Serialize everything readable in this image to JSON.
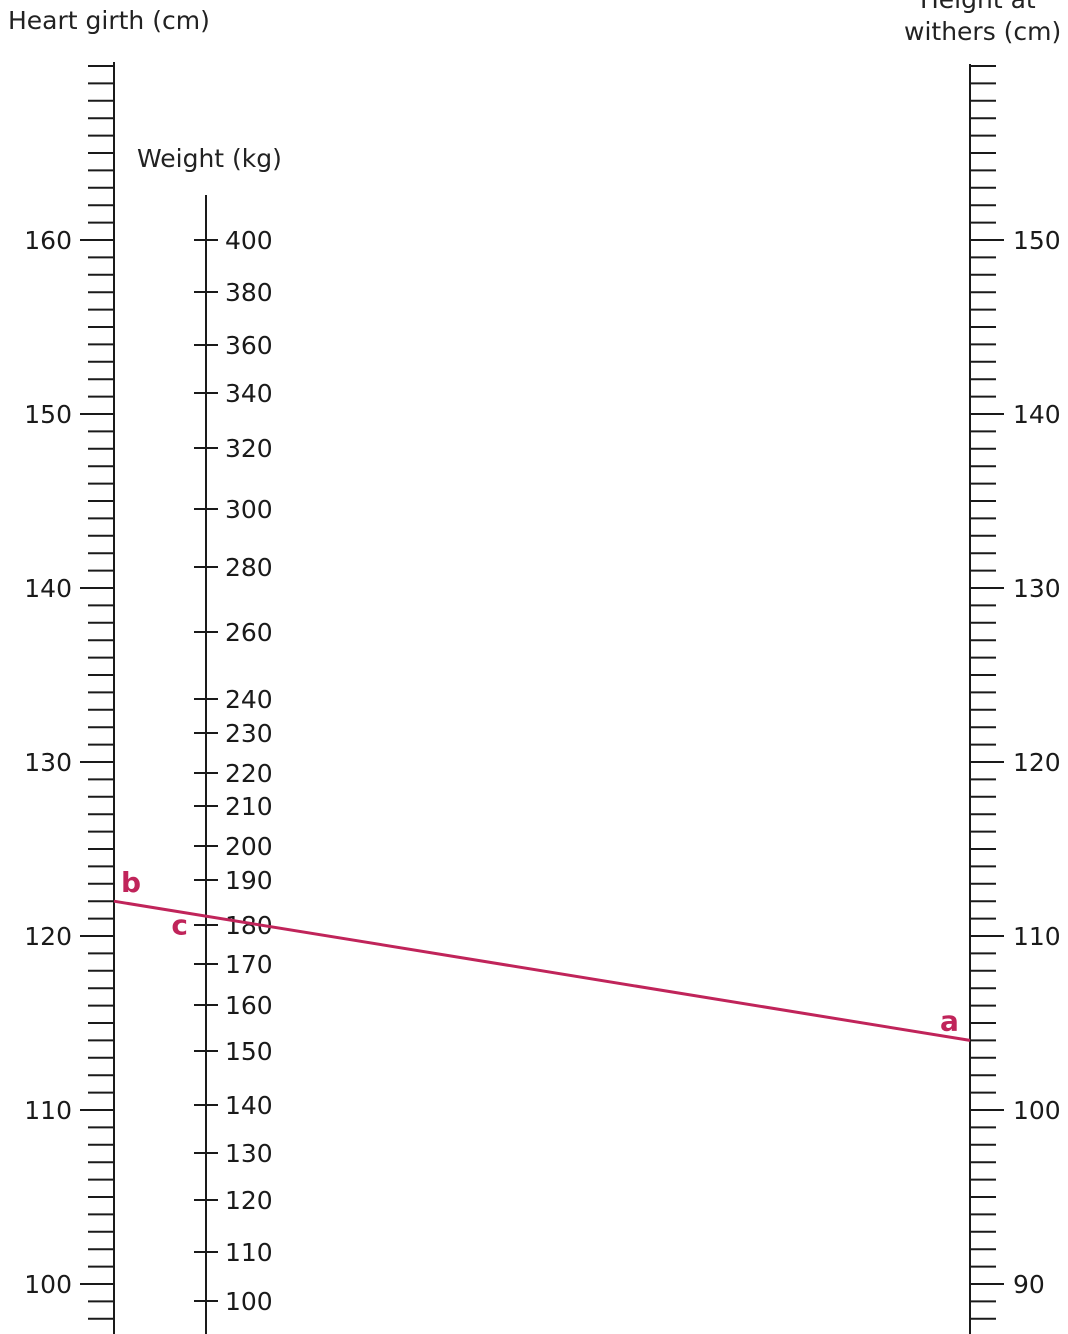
{
  "titles": {
    "heart_girth": "Heart girth (cm)",
    "weight": "Weight (kg)",
    "height_line1": "Height at",
    "height_line2": "withers (cm)"
  },
  "colors": {
    "axis": "#1a1a1a",
    "highlight": "#c0245a"
  },
  "chart_data": {
    "type": "nomogram",
    "scales": [
      {
        "name": "Heart girth (cm)",
        "min": 100,
        "max": 160,
        "major_step": 10,
        "minor_step": 1,
        "labels": [
          "100",
          "110",
          "120",
          "130",
          "140",
          "150",
          "160"
        ]
      },
      {
        "name": "Weight (kg)",
        "ticks": [
          100,
          110,
          120,
          130,
          140,
          150,
          160,
          170,
          180,
          190,
          200,
          210,
          220,
          230,
          240,
          260,
          280,
          300,
          320,
          340,
          360,
          380,
          400
        ],
        "labels": [
          "100",
          "110",
          "120",
          "130",
          "140",
          "150",
          "160",
          "170",
          "180",
          "190",
          "200",
          "210",
          "220",
          "230",
          "240",
          "260",
          "280",
          "300",
          "320",
          "340",
          "360",
          "380",
          "400"
        ]
      },
      {
        "name": "Height at withers (cm)",
        "min": 90,
        "max": 150,
        "major_step": 10,
        "minor_step": 1,
        "labels": [
          "90",
          "100",
          "110",
          "120",
          "130",
          "140",
          "150"
        ]
      }
    ],
    "reading_line": {
      "points": [
        {
          "label": "a",
          "scale": "Height at withers (cm)",
          "value": 104
        },
        {
          "label": "b",
          "scale": "Heart girth (cm)",
          "value": 122
        },
        {
          "label": "c",
          "scale": "Weight (kg)",
          "value": 181
        }
      ]
    }
  }
}
